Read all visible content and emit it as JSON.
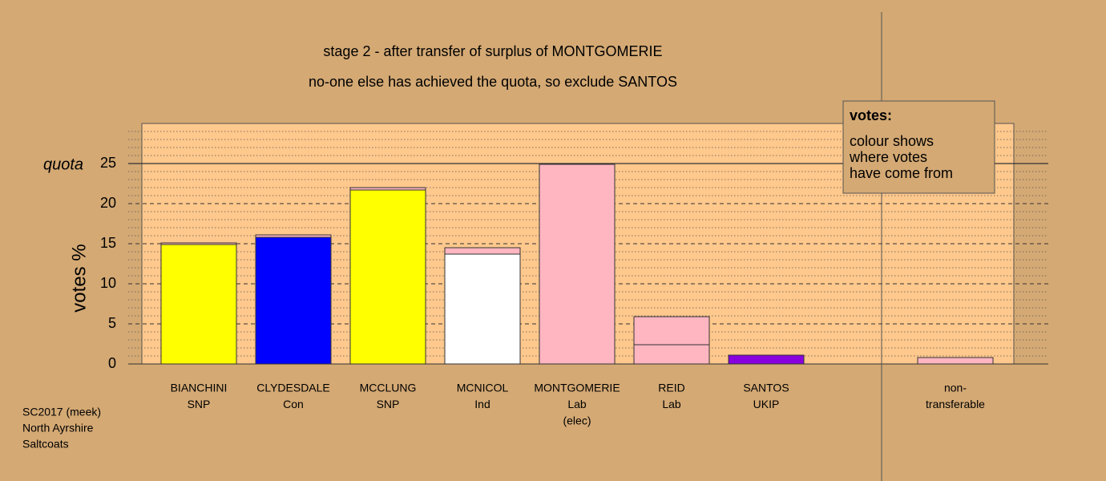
{
  "chart_data": {
    "type": "stacked-bar",
    "title": "stage 2 - after transfer of surplus of MONTGOMERIE",
    "subtitle": "no-one else has achieved the quota, so exclude SANTOS",
    "y_label": "votes %",
    "categories": [
      [
        "BIANCHINI",
        "SNP"
      ],
      [
        "CLYDESDALE",
        "Con"
      ],
      [
        "MCCLUNG",
        "SNP"
      ],
      [
        "MCNICOL",
        "Ind"
      ],
      [
        "MONTGOMERIE",
        "Lab",
        "(elec)"
      ],
      [
        "REID",
        "Lab"
      ],
      [
        "SANTOS",
        "UKIP"
      ],
      null,
      [
        "non-",
        "transferable"
      ]
    ],
    "series": [
      {
        "colors": [
          "#ffff00",
          "#0000ff",
          "#ffff00",
          "#ffffff",
          "#ffb6c1",
          "#ffb6c1",
          "#8800dd",
          null,
          null
        ],
        "values": [
          14.9,
          15.8,
          21.7,
          13.7,
          24.9,
          2.4,
          1.1,
          null,
          null
        ]
      },
      {
        "color": "#ffb6c1",
        "values": [
          0.2,
          0.3,
          0.3,
          0.8,
          null,
          3.5,
          null,
          null,
          0.8
        ]
      }
    ],
    "ylim": [
      0,
      30
    ],
    "yticks": [
      0,
      5,
      10,
      15,
      20,
      25
    ],
    "minor_yticks": [
      1,
      2,
      3,
      4,
      6,
      7,
      8,
      9,
      11,
      12,
      13,
      14,
      16,
      17,
      18,
      19,
      21,
      22,
      23,
      24,
      26,
      27,
      28,
      29
    ],
    "grid": true,
    "quota": 25,
    "quota_label": "quota",
    "legend": {
      "title": "votes:",
      "lines": [
        "colour shows",
        "where votes",
        "have come from"
      ]
    },
    "footer": [
      "SC2017 (meek)",
      "North Ayrshire",
      "Saltcoats"
    ]
  }
}
